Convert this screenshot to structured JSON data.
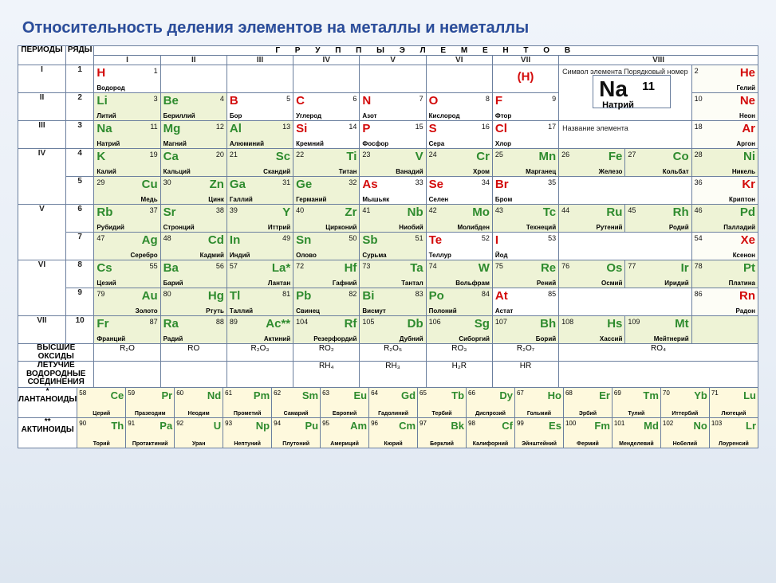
{
  "title": "Относительность деления элементов на металлы и неметаллы",
  "labels": {
    "periods": "ПЕРИОДЫ",
    "rows": "РЯДЫ",
    "groups": "Г Р У П П Ы   Э Л Е М Е Н Т О В",
    "symlab": "Символ элемента",
    "numlab": "Порядковый номер",
    "namelab": "Название элемента",
    "hox": "ВЫСШИЕ ОКСИДЫ",
    "hydr": "ЛЕТУЧИЕ ВОДОРОДНЫЕ СОЕДИНЕНИЯ",
    "lan": "* ЛАНТАНОИДЫ",
    "act": "** АКТИНОИДЫ"
  },
  "romans": [
    "I",
    "II",
    "III",
    "IV",
    "V",
    "VI",
    "VII",
    "VIII"
  ],
  "periods": [
    "I",
    "II",
    "III",
    "IV",
    "V",
    "VI",
    "VII"
  ],
  "key": {
    "sym": "Na",
    "num": "11",
    "name": "Натрий"
  },
  "hparen": "(H)",
  "oxides": [
    "R₂O",
    "RO",
    "R₂O₃",
    "RO₂",
    "R₂O₅",
    "RO₃",
    "R₂O₇",
    "RO₄"
  ],
  "hydrides": [
    "",
    "",
    "",
    "RH₄",
    "RH₃",
    "H₂R",
    "HR",
    ""
  ],
  "rows": [
    {
      "p": "I",
      "r": "1",
      "c": [
        {
          "s": "H",
          "n": 1,
          "nm": "Водород",
          "t": "nonmetal",
          "al": "a"
        },
        null,
        null,
        null,
        null,
        null,
        {
          "paren": true
        },
        "KEY",
        {
          "s": "He",
          "n": 2,
          "nm": "Гелий",
          "t": "nonmetal",
          "al": "b",
          "bg": "n"
        }
      ]
    },
    {
      "p": "II",
      "r": "2",
      "c": [
        {
          "s": "Li",
          "n": 3,
          "nm": "Литий",
          "t": "metal",
          "al": "a",
          "bg": "m"
        },
        {
          "s": "Be",
          "n": 4,
          "nm": "Бериллий",
          "t": "metal",
          "al": "a",
          "bg": "m"
        },
        {
          "s": "B",
          "n": 5,
          "nm": "Бор",
          "t": "nonmetal",
          "al": "a"
        },
        {
          "s": "C",
          "n": 6,
          "nm": "Углерод",
          "t": "nonmetal",
          "al": "a"
        },
        {
          "s": "N",
          "n": 7,
          "nm": "Азот",
          "t": "nonmetal",
          "al": "a"
        },
        {
          "s": "O",
          "n": 8,
          "nm": "Кислород",
          "t": "nonmetal",
          "al": "a"
        },
        {
          "s": "F",
          "n": 9,
          "nm": "Фтор",
          "t": "nonmetal",
          "al": "a"
        },
        "KEY",
        {
          "s": "Ne",
          "n": 10,
          "nm": "Неон",
          "t": "nonmetal",
          "al": "b",
          "bg": "n"
        }
      ]
    },
    {
      "p": "III",
      "r": "3",
      "c": [
        {
          "s": "Na",
          "n": 11,
          "nm": "Натрий",
          "t": "metal",
          "al": "a",
          "bg": "m"
        },
        {
          "s": "Mg",
          "n": 12,
          "nm": "Магний",
          "t": "metal",
          "al": "a",
          "bg": "m"
        },
        {
          "s": "Al",
          "n": 13,
          "nm": "Алюминий",
          "t": "metal",
          "al": "a",
          "bg": "m"
        },
        {
          "s": "Si",
          "n": 14,
          "nm": "Кремний",
          "t": "nonmetal",
          "al": "a"
        },
        {
          "s": "P",
          "n": 15,
          "nm": "Фосфор",
          "t": "nonmetal",
          "al": "a"
        },
        {
          "s": "S",
          "n": 16,
          "nm": "Сера",
          "t": "nonmetal",
          "al": "a"
        },
        {
          "s": "Cl",
          "n": 17,
          "nm": "Хлор",
          "t": "nonmetal",
          "al": "a"
        },
        "KEYNAME",
        {
          "s": "Ar",
          "n": 18,
          "nm": "Аргон",
          "t": "nonmetal",
          "al": "b",
          "bg": "n"
        }
      ]
    },
    {
      "p": "IV",
      "r": "4",
      "c": [
        {
          "s": "K",
          "n": 19,
          "nm": "Калий",
          "t": "metal",
          "al": "a",
          "bg": "m"
        },
        {
          "s": "Ca",
          "n": 20,
          "nm": "Кальций",
          "t": "metal",
          "al": "a",
          "bg": "m"
        },
        {
          "s": "Sc",
          "n": 21,
          "nm": "Скандий",
          "t": "metal",
          "al": "b",
          "bg": "m"
        },
        {
          "s": "Ti",
          "n": 22,
          "nm": "Титан",
          "t": "metal",
          "al": "b",
          "bg": "m"
        },
        {
          "s": "V",
          "n": 23,
          "nm": "Ванадий",
          "t": "metal",
          "al": "b",
          "bg": "m"
        },
        {
          "s": "Cr",
          "n": 24,
          "nm": "Хром",
          "t": "metal",
          "al": "b",
          "bg": "m"
        },
        {
          "s": "Mn",
          "n": 25,
          "nm": "Марганец",
          "t": "metal",
          "al": "b",
          "bg": "m"
        },
        [
          {
            "s": "Fe",
            "n": 26,
            "nm": "Железо",
            "t": "metal",
            "al": "b",
            "bg": "m"
          },
          {
            "s": "Co",
            "n": 27,
            "nm": "Кольбат",
            "t": "metal",
            "al": "b",
            "bg": "m"
          },
          {
            "s": "Ni",
            "n": 28,
            "nm": "Никель",
            "t": "metal",
            "al": "b",
            "bg": "m"
          }
        ],
        null
      ]
    },
    {
      "p": "",
      "r": "5",
      "c": [
        {
          "s": "Cu",
          "n": 29,
          "nm": "Медь",
          "t": "metal",
          "al": "b",
          "bg": "m"
        },
        {
          "s": "Zn",
          "n": 30,
          "nm": "Цинк",
          "t": "metal",
          "al": "b",
          "bg": "m"
        },
        {
          "s": "Ga",
          "n": 31,
          "nm": "Галлий",
          "t": "metal",
          "al": "a",
          "bg": "m"
        },
        {
          "s": "Ge",
          "n": 32,
          "nm": "Германий",
          "t": "metal",
          "al": "a",
          "bg": "m"
        },
        {
          "s": "As",
          "n": 33,
          "nm": "Мышьяк",
          "t": "nonmetal",
          "al": "a"
        },
        {
          "s": "Se",
          "n": 34,
          "nm": "Селен",
          "t": "nonmetal",
          "al": "a"
        },
        {
          "s": "Br",
          "n": 35,
          "nm": "Бром",
          "t": "nonmetal",
          "al": "a"
        },
        null,
        {
          "s": "Kr",
          "n": 36,
          "nm": "Криптон",
          "t": "nonmetal",
          "al": "b",
          "bg": "n"
        }
      ]
    },
    {
      "p": "V",
      "r": "6",
      "c": [
        {
          "s": "Rb",
          "n": 37,
          "nm": "Рубидий",
          "t": "metal",
          "al": "a",
          "bg": "m"
        },
        {
          "s": "Sr",
          "n": 38,
          "nm": "Стронций",
          "t": "metal",
          "al": "a",
          "bg": "m"
        },
        {
          "s": "Y",
          "n": 39,
          "nm": "Иттрий",
          "t": "metal",
          "al": "b",
          "bg": "m"
        },
        {
          "s": "Zr",
          "n": 40,
          "nm": "Цирконий",
          "t": "metal",
          "al": "b",
          "bg": "m"
        },
        {
          "s": "Nb",
          "n": 41,
          "nm": "Ниобий",
          "t": "metal",
          "al": "b",
          "bg": "m"
        },
        {
          "s": "Mo",
          "n": 42,
          "nm": "Молибден",
          "t": "metal",
          "al": "b",
          "bg": "m"
        },
        {
          "s": "Tc",
          "n": 43,
          "nm": "Технеций",
          "t": "metal",
          "al": "b",
          "bg": "m"
        },
        [
          {
            "s": "Ru",
            "n": 44,
            "nm": "Рутений",
            "t": "metal",
            "al": "b",
            "bg": "m"
          },
          {
            "s": "Rh",
            "n": 45,
            "nm": "Родий",
            "t": "metal",
            "al": "b",
            "bg": "m"
          },
          {
            "s": "Pd",
            "n": 46,
            "nm": "Палладий",
            "t": "metal",
            "al": "b",
            "bg": "m"
          }
        ],
        null
      ]
    },
    {
      "p": "",
      "r": "7",
      "c": [
        {
          "s": "Ag",
          "n": 47,
          "nm": "Серебро",
          "t": "metal",
          "al": "b",
          "bg": "m"
        },
        {
          "s": "Cd",
          "n": 48,
          "nm": "Кадмий",
          "t": "metal",
          "al": "b",
          "bg": "m"
        },
        {
          "s": "In",
          "n": 49,
          "nm": "Индий",
          "t": "metal",
          "al": "a",
          "bg": "m"
        },
        {
          "s": "Sn",
          "n": 50,
          "nm": "Олово",
          "t": "metal",
          "al": "a",
          "bg": "m"
        },
        {
          "s": "Sb",
          "n": 51,
          "nm": "Сурьма",
          "t": "metal",
          "al": "a",
          "bg": "m"
        },
        {
          "s": "Te",
          "n": 52,
          "nm": "Теллур",
          "t": "nonmetal",
          "al": "a"
        },
        {
          "s": "I",
          "n": 53,
          "nm": "Йод",
          "t": "nonmetal",
          "al": "a"
        },
        null,
        {
          "s": "Xe",
          "n": 54,
          "nm": "Ксенон",
          "t": "nonmetal",
          "al": "b",
          "bg": "n"
        }
      ]
    },
    {
      "p": "VI",
      "r": "8",
      "c": [
        {
          "s": "Cs",
          "n": 55,
          "nm": "Цезий",
          "t": "metal",
          "al": "a",
          "bg": "m"
        },
        {
          "s": "Ba",
          "n": 56,
          "nm": "Барий",
          "t": "metal",
          "al": "a",
          "bg": "m"
        },
        {
          "s": "La*",
          "n": 57,
          "nm": "Лантан",
          "t": "metal",
          "al": "b",
          "bg": "m"
        },
        {
          "s": "Hf",
          "n": 72,
          "nm": "Гафний",
          "t": "metal",
          "al": "b",
          "bg": "m"
        },
        {
          "s": "Ta",
          "n": 73,
          "nm": "Тантал",
          "t": "metal",
          "al": "b",
          "bg": "m"
        },
        {
          "s": "W",
          "n": 74,
          "nm": "Вольфрам",
          "t": "metal",
          "al": "b",
          "bg": "m"
        },
        {
          "s": "Re",
          "n": 75,
          "nm": "Рений",
          "t": "metal",
          "al": "b",
          "bg": "m"
        },
        [
          {
            "s": "Os",
            "n": 76,
            "nm": "Осмий",
            "t": "metal",
            "al": "b",
            "bg": "m"
          },
          {
            "s": "Ir",
            "n": 77,
            "nm": "Иридий",
            "t": "metal",
            "al": "b",
            "bg": "m"
          },
          {
            "s": "Pt",
            "n": 78,
            "nm": "Платина",
            "t": "metal",
            "al": "b",
            "bg": "m"
          }
        ],
        null
      ]
    },
    {
      "p": "",
      "r": "9",
      "c": [
        {
          "s": "Au",
          "n": 79,
          "nm": "Золото",
          "t": "metal",
          "al": "b",
          "bg": "m"
        },
        {
          "s": "Hg",
          "n": 80,
          "nm": "Ртуть",
          "t": "metal",
          "al": "b",
          "bg": "m"
        },
        {
          "s": "Tl",
          "n": 81,
          "nm": "Таллий",
          "t": "metal",
          "al": "a",
          "bg": "m"
        },
        {
          "s": "Pb",
          "n": 82,
          "nm": "Свинец",
          "t": "metal",
          "al": "a",
          "bg": "m"
        },
        {
          "s": "Bi",
          "n": 83,
          "nm": "Висмут",
          "t": "metal",
          "al": "a",
          "bg": "m"
        },
        {
          "s": "Po",
          "n": 84,
          "nm": "Полоний",
          "t": "metal",
          "al": "a",
          "bg": "m"
        },
        {
          "s": "At",
          "n": 85,
          "nm": "Астат",
          "t": "nonmetal",
          "al": "a"
        },
        null,
        {
          "s": "Rn",
          "n": 86,
          "nm": "Радон",
          "t": "nonmetal",
          "al": "b",
          "bg": "n"
        }
      ]
    },
    {
      "p": "VII",
      "r": "10",
      "c": [
        {
          "s": "Fr",
          "n": 87,
          "nm": "Франций",
          "t": "metal",
          "al": "a",
          "bg": "m"
        },
        {
          "s": "Ra",
          "n": 88,
          "nm": "Радий",
          "t": "metal",
          "al": "a",
          "bg": "m"
        },
        {
          "s": "Ac**",
          "n": 89,
          "nm": "Актиний",
          "t": "metal",
          "al": "b",
          "bg": "m"
        },
        {
          "s": "Rf",
          "n": 104,
          "nm": "Резерфордий",
          "t": "metal",
          "al": "b",
          "bg": "m"
        },
        {
          "s": "Db",
          "n": 105,
          "nm": "Дубний",
          "t": "metal",
          "al": "b",
          "bg": "m"
        },
        {
          "s": "Sg",
          "n": 106,
          "nm": "Сиборгий",
          "t": "metal",
          "al": "b",
          "bg": "m"
        },
        {
          "s": "Bh",
          "n": 107,
          "nm": "Борий",
          "t": "metal",
          "al": "b",
          "bg": "m"
        },
        [
          {
            "s": "Hs",
            "n": 108,
            "nm": "Хассий",
            "t": "metal",
            "al": "b",
            "bg": "m"
          },
          {
            "s": "Mt",
            "n": 109,
            "nm": "Мейтнерий",
            "t": "metal",
            "al": "b",
            "bg": "m"
          },
          {
            "s": "",
            "n": "",
            "nm": "",
            "t": "metal",
            "al": "b",
            "bg": "m"
          }
        ],
        null
      ]
    }
  ],
  "lan": [
    {
      "s": "Ce",
      "n": 58,
      "nm": "Церий"
    },
    {
      "s": "Pr",
      "n": 59,
      "nm": "Празеодим"
    },
    {
      "s": "Nd",
      "n": 60,
      "nm": "Неодим"
    },
    {
      "s": "Pm",
      "n": 61,
      "nm": "Прометий"
    },
    {
      "s": "Sm",
      "n": 62,
      "nm": "Самарий"
    },
    {
      "s": "Eu",
      "n": 63,
      "nm": "Европий"
    },
    {
      "s": "Gd",
      "n": 64,
      "nm": "Гадолиний"
    },
    {
      "s": "Tb",
      "n": 65,
      "nm": "Тербий"
    },
    {
      "s": "Dy",
      "n": 66,
      "nm": "Диспрозий"
    },
    {
      "s": "Ho",
      "n": 67,
      "nm": "Гольмий"
    },
    {
      "s": "Er",
      "n": 68,
      "nm": "Эрбий"
    },
    {
      "s": "Tm",
      "n": 69,
      "nm": "Тулий"
    },
    {
      "s": "Yb",
      "n": 70,
      "nm": "Иттербий"
    },
    {
      "s": "Lu",
      "n": 71,
      "nm": "Лютеций"
    }
  ],
  "act": [
    {
      "s": "Th",
      "n": 90,
      "nm": "Торий"
    },
    {
      "s": "Pa",
      "n": 91,
      "nm": "Протактиний"
    },
    {
      "s": "U",
      "n": 92,
      "nm": "Уран"
    },
    {
      "s": "Np",
      "n": 93,
      "nm": "Нептуний"
    },
    {
      "s": "Pu",
      "n": 94,
      "nm": "Плутоний"
    },
    {
      "s": "Am",
      "n": 95,
      "nm": "Америций"
    },
    {
      "s": "Cm",
      "n": 96,
      "nm": "Кюрий"
    },
    {
      "s": "Bk",
      "n": 97,
      "nm": "Берклий"
    },
    {
      "s": "Cf",
      "n": 98,
      "nm": "Калифорний"
    },
    {
      "s": "Es",
      "n": 99,
      "nm": "Эйнштейний"
    },
    {
      "s": "Fm",
      "n": 100,
      "nm": "Фермий"
    },
    {
      "s": "Md",
      "n": 101,
      "nm": "Менделевий"
    },
    {
      "s": "No",
      "n": 102,
      "nm": "Нобелий"
    },
    {
      "s": "Lr",
      "n": 103,
      "nm": "Лоуренсий"
    }
  ]
}
